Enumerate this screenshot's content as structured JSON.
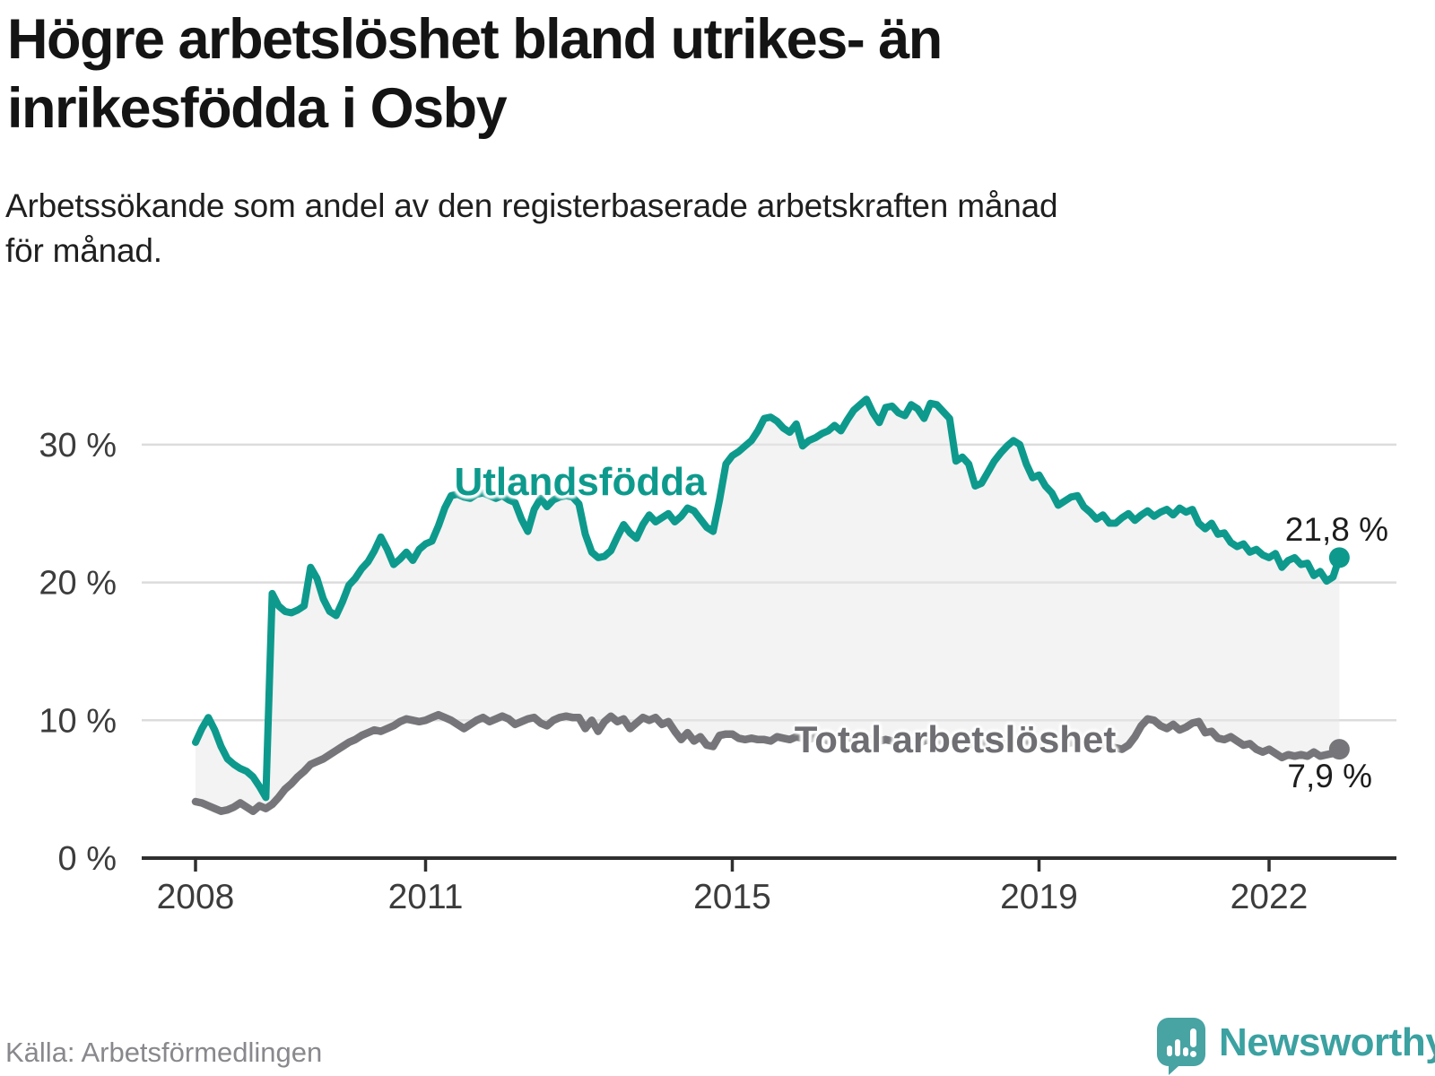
{
  "header": {
    "title_lines": [
      "Högre arbetslöshet bland utrikes- än",
      "inrikesfödda i Osby"
    ],
    "subtitle_lines": [
      "Arbetssökande som andel av den registerbaserade arbetskraften månad",
      "för månad."
    ]
  },
  "chart_data": {
    "type": "line",
    "title": "Högre arbetslöshet bland utrikes- än inrikesfödda i Osby",
    "subtitle": "Arbetssökande som andel av den registerbaserade arbetskraften månad för månad.",
    "x_unit": "month",
    "x_start": "2008-01",
    "x_end": "2022-12",
    "ylim": [
      0,
      35
    ],
    "grid": "horizontal",
    "colors": {
      "foreign_born": "#0d9a8d",
      "total": "#76767a",
      "gridline": "#dcdcdc",
      "axis": "#2f2f2f",
      "axis_text": "#3c3c3c",
      "band_fill": "#e8e8e8"
    },
    "y_axis": {
      "tick_values": [
        0,
        10,
        20,
        30
      ],
      "tick_labels": [
        "0 %",
        "10 %",
        "20 %",
        "30 %"
      ]
    },
    "x_axis": {
      "tick_years": [
        "2008",
        "2011",
        "2015",
        "2019",
        "2022"
      ],
      "tick_month_index": [
        0,
        36,
        84,
        132,
        168
      ]
    },
    "series": [
      {
        "name": "Utlandsfödda",
        "end_label": "21,8 %",
        "end_value": 21.8,
        "values": [
          8.4,
          9.4,
          10.2,
          9.3,
          8.1,
          7.2,
          6.8,
          6.5,
          6.3,
          5.9,
          5.2,
          4.4,
          19.2,
          18.3,
          17.9,
          17.8,
          18.0,
          18.3,
          21.1,
          20.3,
          18.8,
          17.9,
          17.6,
          18.6,
          19.8,
          20.3,
          21.0,
          21.5,
          22.3,
          23.3,
          22.4,
          21.3,
          21.7,
          22.2,
          21.6,
          22.4,
          22.8,
          23.0,
          24.1,
          25.4,
          26.3,
          26.4,
          26.2,
          26.1,
          26.4,
          26.5,
          26.3,
          26.1,
          26.3,
          26.0,
          25.8,
          24.6,
          23.7,
          25.3,
          26.1,
          25.5,
          26.0,
          26.2,
          26.3,
          26.2,
          25.7,
          23.5,
          22.2,
          21.8,
          21.9,
          22.3,
          23.3,
          24.2,
          23.6,
          23.2,
          24.2,
          24.9,
          24.4,
          24.7,
          25.0,
          24.4,
          24.8,
          25.4,
          25.2,
          24.6,
          24.0,
          23.7,
          26.0,
          28.6,
          29.2,
          29.5,
          29.9,
          30.3,
          31.0,
          31.9,
          32.0,
          31.7,
          31.2,
          30.9,
          31.5,
          29.9,
          30.3,
          30.5,
          30.8,
          31.0,
          31.4,
          31.0,
          31.8,
          32.5,
          32.9,
          33.3,
          32.3,
          31.6,
          32.7,
          32.8,
          32.3,
          32.1,
          32.9,
          32.6,
          31.9,
          33.0,
          32.9,
          32.4,
          31.9,
          28.8,
          29.1,
          28.6,
          27.0,
          27.2,
          28.0,
          28.8,
          29.4,
          29.9,
          30.3,
          30.0,
          28.6,
          27.6,
          27.8,
          27.0,
          26.5,
          25.6,
          25.9,
          26.2,
          26.3,
          25.5,
          25.1,
          24.6,
          24.9,
          24.3,
          24.3,
          24.7,
          25.0,
          24.5,
          24.9,
          25.2,
          24.8,
          25.1,
          25.3,
          24.9,
          25.4,
          25.1,
          25.3,
          24.3,
          23.9,
          24.3,
          23.5,
          23.6,
          22.9,
          22.6,
          22.8,
          22.2,
          22.4,
          22.0,
          21.8,
          22.1,
          21.1,
          21.6,
          21.8,
          21.3,
          21.4,
          20.5,
          20.8,
          20.1,
          20.4,
          21.8
        ]
      },
      {
        "name": "Total arbetslöshet",
        "end_label": "7,9 %",
        "end_value": 7.9,
        "values": [
          4.1,
          4.0,
          3.8,
          3.6,
          3.4,
          3.5,
          3.7,
          4.0,
          3.7,
          3.4,
          3.8,
          3.6,
          3.9,
          4.4,
          5.0,
          5.4,
          5.9,
          6.3,
          6.8,
          7.0,
          7.2,
          7.5,
          7.8,
          8.1,
          8.4,
          8.6,
          8.9,
          9.1,
          9.3,
          9.2,
          9.4,
          9.6,
          9.9,
          10.1,
          10.0,
          9.9,
          10.0,
          10.2,
          10.4,
          10.2,
          10.0,
          9.7,
          9.4,
          9.7,
          10.0,
          10.2,
          9.9,
          10.1,
          10.3,
          10.1,
          9.7,
          9.9,
          10.1,
          10.2,
          9.8,
          9.6,
          10.0,
          10.2,
          10.3,
          10.2,
          10.2,
          9.4,
          10.0,
          9.2,
          9.9,
          10.3,
          9.9,
          10.1,
          9.4,
          9.8,
          10.2,
          10.0,
          10.2,
          9.7,
          9.9,
          9.2,
          8.6,
          9.1,
          8.5,
          8.8,
          8.2,
          8.1,
          8.9,
          9.0,
          9.0,
          8.7,
          8.6,
          8.7,
          8.6,
          8.6,
          8.5,
          8.8,
          8.7,
          8.6,
          8.8,
          8.7,
          8.6,
          8.8,
          8.7,
          8.5,
          8.7,
          8.6,
          8.8,
          8.6,
          8.5,
          8.7,
          8.6,
          8.5,
          8.6,
          8.5,
          8.4,
          8.6,
          8.5,
          8.3,
          8.5,
          8.6,
          8.4,
          8.5,
          8.3,
          8.4,
          8.5,
          8.3,
          8.2,
          8.4,
          8.3,
          8.5,
          8.4,
          8.2,
          8.3,
          8.5,
          8.4,
          8.3,
          8.2,
          8.4,
          8.3,
          8.1,
          8.2,
          8.4,
          8.3,
          8.2,
          8.0,
          8.1,
          8.2,
          8.1,
          8.0,
          7.9,
          8.2,
          8.8,
          9.6,
          10.1,
          10.0,
          9.6,
          9.4,
          9.7,
          9.3,
          9.5,
          9.8,
          9.9,
          9.1,
          9.2,
          8.7,
          8.6,
          8.8,
          8.5,
          8.2,
          8.3,
          7.9,
          7.7,
          7.9,
          7.6,
          7.3,
          7.5,
          7.4,
          7.5,
          7.4,
          7.7,
          7.4,
          7.5,
          7.6,
          7.9
        ]
      }
    ]
  },
  "footer": {
    "source": "Källa: Arbetsförmedlingen",
    "brand_name": "Newsworthy",
    "brand_color": "#3ba1a1"
  }
}
